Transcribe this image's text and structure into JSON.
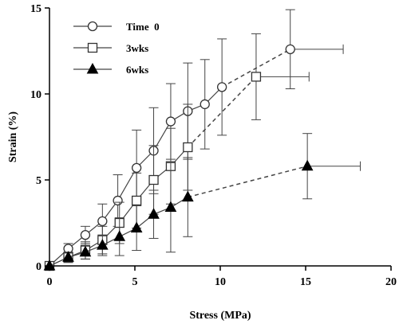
{
  "chart_data": {
    "type": "line",
    "xlabel": "Stress (MPa)",
    "ylabel": "Strain (%)",
    "xlim": [
      0,
      20
    ],
    "ylim": [
      0,
      15
    ],
    "xticks": [
      "0",
      "5",
      "10",
      "15",
      "20"
    ],
    "yticks": [
      "0",
      "5",
      "10",
      "15"
    ],
    "grid": false,
    "legend_position": "top-left",
    "series": [
      {
        "name": "Time  0",
        "marker": "open-circle",
        "points": [
          {
            "x": 0,
            "y": 0,
            "err": 0
          },
          {
            "x": 1.1,
            "y": 1.0,
            "err": 0.3
          },
          {
            "x": 2.1,
            "y": 1.8,
            "err": 0.5
          },
          {
            "x": 3.1,
            "y": 2.6,
            "err": 1.0
          },
          {
            "x": 4.0,
            "y": 3.8,
            "err": 1.5
          },
          {
            "x": 5.1,
            "y": 5.7,
            "err": 2.2
          },
          {
            "x": 6.1,
            "y": 6.7,
            "err": 2.5
          },
          {
            "x": 7.1,
            "y": 8.4,
            "err": 2.2
          },
          {
            "x": 8.1,
            "y": 9.0,
            "err": 2.8
          },
          {
            "x": 9.1,
            "y": 9.4,
            "err": 2.6
          },
          {
            "x": 10.1,
            "y": 10.4,
            "err": 2.8
          },
          {
            "x": 14.1,
            "y": 12.6,
            "err": 2.3,
            "xerr": 3.1
          }
        ]
      },
      {
        "name": "3wks",
        "marker": "open-square",
        "points": [
          {
            "x": 0,
            "y": 0,
            "err": 0
          },
          {
            "x": 1.1,
            "y": 0.5,
            "err": 0.3
          },
          {
            "x": 2.1,
            "y": 0.9,
            "err": 0.5
          },
          {
            "x": 3.1,
            "y": 1.5,
            "err": 0.8
          },
          {
            "x": 4.1,
            "y": 2.5,
            "err": 1.2
          },
          {
            "x": 5.1,
            "y": 3.8,
            "err": 1.6
          },
          {
            "x": 6.1,
            "y": 5.0,
            "err": 2.0
          },
          {
            "x": 7.1,
            "y": 5.8,
            "err": 2.2
          },
          {
            "x": 8.1,
            "y": 6.9,
            "err": 2.5
          },
          {
            "x": 12.1,
            "y": 11.0,
            "err": 2.5,
            "xerr": 3.1
          }
        ]
      },
      {
        "name": "6wks",
        "marker": "filled-triangle",
        "points": [
          {
            "x": 0,
            "y": 0,
            "err": 0
          },
          {
            "x": 1.1,
            "y": 0.5,
            "err": 0.3
          },
          {
            "x": 2.1,
            "y": 0.8,
            "err": 0.4
          },
          {
            "x": 3.1,
            "y": 1.2,
            "err": 0.6
          },
          {
            "x": 4.1,
            "y": 1.7,
            "err": 1.1
          },
          {
            "x": 5.1,
            "y": 2.2,
            "err": 1.3
          },
          {
            "x": 6.1,
            "y": 3.0,
            "err": 1.4
          },
          {
            "x": 7.1,
            "y": 3.4,
            "err": 2.6
          },
          {
            "x": 8.1,
            "y": 4.0,
            "err": 2.3
          },
          {
            "x": 15.1,
            "y": 5.8,
            "err": 1.9,
            "xerr": 3.1
          }
        ]
      }
    ]
  }
}
